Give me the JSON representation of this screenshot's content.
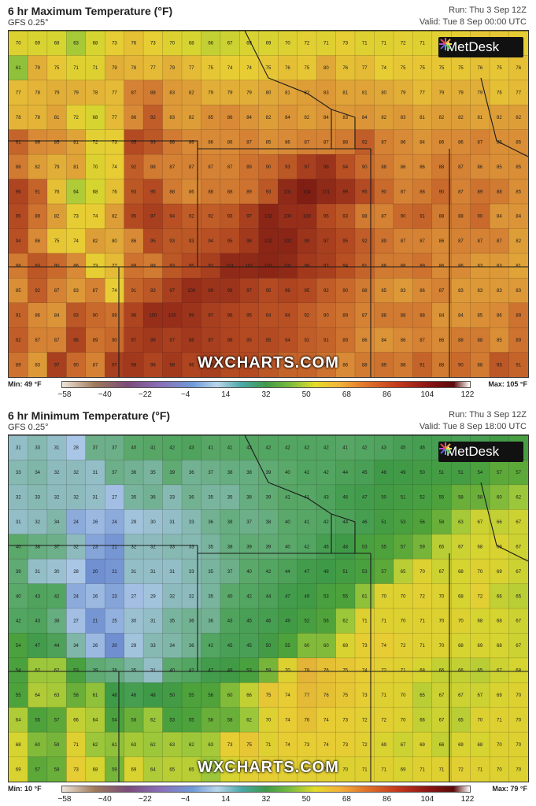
{
  "panels": [
    {
      "title": "6 hr Maximum Temperature (°F)",
      "model": "GFS 0.25°",
      "run": "Run: Thu 3 Sep 12Z",
      "valid": "Valid: Tue 8 Sep 00:00 UTC",
      "logo": "MetDesk",
      "watermark": "WXCHARTS.COM",
      "legend_min": "Min: 49 °F",
      "legend_max": "Max: 105 °F",
      "legend_ticks": [
        "−58",
        "−40",
        "−22",
        "−4",
        "14",
        "32",
        "50",
        "68",
        "86",
        "104",
        "122"
      ],
      "grid": [
        [
          70,
          69,
          68,
          63,
          68,
          73,
          76,
          73,
          70,
          68,
          66,
          67,
          69,
          69,
          70,
          72,
          71,
          73,
          71,
          71,
          72,
          71,
          72,
          73,
          75,
          75,
          73
        ],
        [
          61,
          79,
          75,
          71,
          71,
          79,
          78,
          77,
          79,
          77,
          75,
          74,
          74,
          75,
          76,
          75,
          80,
          76,
          77,
          74,
          75,
          75,
          75,
          75,
          76,
          75,
          76
        ],
        [
          77,
          78,
          79,
          79,
          78,
          77,
          87,
          88,
          83,
          82,
          79,
          79,
          79,
          80,
          81,
          82,
          83,
          81,
          81,
          80,
          79,
          77,
          79,
          79,
          79,
          76,
          77
        ],
        [
          78,
          78,
          81,
          72,
          68,
          77,
          86,
          92,
          83,
          82,
          85,
          86,
          84,
          82,
          84,
          82,
          84,
          83,
          84,
          82,
          83,
          81,
          82,
          82,
          81,
          82,
          82
        ],
        [
          91,
          86,
          85,
          81,
          72,
          73,
          95,
          93,
          88,
          86,
          86,
          86,
          87,
          85,
          86,
          87,
          87,
          88,
          92,
          87,
          86,
          84,
          86,
          86,
          87,
          85,
          85
        ],
        [
          88,
          82,
          79,
          81,
          70,
          74,
          92,
          88,
          87,
          87,
          87,
          87,
          89,
          90,
          93,
          97,
          99,
          94,
          90,
          88,
          86,
          86,
          88,
          87,
          86,
          85,
          85
        ],
        [
          96,
          91,
          76,
          64,
          68,
          76,
          93,
          95,
          88,
          86,
          88,
          88,
          89,
          93,
          101,
          104,
          101,
          99,
          95,
          90,
          87,
          88,
          90,
          87,
          89,
          88,
          85
        ],
        [
          95,
          89,
          82,
          73,
          74,
          82,
          95,
          97,
          94,
          92,
          92,
          93,
          97,
          102,
          100,
          100,
          95,
          93,
          88,
          87,
          90,
          91,
          88,
          88,
          90,
          84,
          84
        ],
        [
          94,
          86,
          75,
          74,
          82,
          80,
          86,
          95,
          93,
          93,
          94,
          95,
          98,
          102,
          102,
          99,
          97,
          95,
          92,
          89,
          87,
          87,
          86,
          87,
          87,
          87,
          82
        ],
        [
          88,
          93,
          90,
          86,
          73,
          77,
          89,
          88,
          93,
          95,
          97,
          101,
          101,
          102,
          101,
          98,
          97,
          94,
          91,
          88,
          88,
          89,
          86,
          86,
          83,
          83,
          81
        ],
        [
          85,
          92,
          87,
          83,
          87,
          74,
          91,
          93,
          97,
          100,
          99,
          99,
          97,
          95,
          96,
          95,
          92,
          90,
          88,
          85,
          83,
          86,
          87,
          83,
          83,
          83,
          83
        ],
        [
          91,
          86,
          84,
          93,
          90,
          89,
          96,
          100,
          100,
          99,
          97,
          96,
          95,
          94,
          94,
          92,
          90,
          89,
          87,
          88,
          88,
          88,
          84,
          84,
          85,
          86,
          89
        ],
        [
          92,
          87,
          87,
          96,
          89,
          90,
          97,
          98,
          97,
          98,
          97,
          96,
          95,
          95,
          94,
          92,
          91,
          89,
          86,
          84,
          86,
          87,
          86,
          88,
          88,
          85,
          89
        ],
        [
          89,
          83,
          97,
          90,
          87,
          97,
          98,
          96,
          98,
          96,
          97,
          95,
          95,
          93,
          91,
          91,
          89,
          86,
          88,
          89,
          88,
          91,
          88,
          90,
          88,
          93,
          91
        ]
      ]
    },
    {
      "title": "6 hr Minimum Temperature (°F)",
      "model": "GFS 0.25°",
      "run": "Run: Thu 3 Sep 12Z",
      "valid": "Valid: Tue 8 Sep 18:00 UTC",
      "logo": "MetDesk",
      "watermark": "WXCHARTS.COM",
      "legend_min": "Min: 10 °F",
      "legend_max": "Max: 79 °F",
      "legend_ticks": [
        "−58",
        "−40",
        "−22",
        "−4",
        "14",
        "32",
        "50",
        "68",
        "86",
        "104",
        "122"
      ],
      "grid": [
        [
          31,
          33,
          31,
          28,
          37,
          37,
          40,
          41,
          42,
          43,
          41,
          41,
          42,
          42,
          42,
          42,
          42,
          41,
          42,
          43,
          45,
          46,
          46,
          45,
          46,
          49,
          52
        ],
        [
          33,
          34,
          32,
          32,
          31,
          37,
          36,
          35,
          39,
          36,
          37,
          38,
          38,
          39,
          40,
          42,
          42,
          44,
          45,
          48,
          49,
          50,
          51,
          51,
          54,
          57,
          57
        ],
        [
          32,
          33,
          32,
          32,
          31,
          27,
          35,
          36,
          33,
          36,
          35,
          35,
          38,
          39,
          41,
          41,
          43,
          46,
          47,
          50,
          51,
          52,
          55,
          58,
          58,
          60,
          62
        ],
        [
          31,
          32,
          34,
          24,
          26,
          24,
          29,
          30,
          31,
          33,
          36,
          38,
          37,
          38,
          40,
          41,
          42,
          44,
          46,
          51,
          53,
          56,
          58,
          63,
          67,
          66,
          67
        ],
        [
          40,
          38,
          37,
          32,
          23,
          21,
          32,
          32,
          33,
          33,
          35,
          38,
          39,
          39,
          40,
          42,
          46,
          48,
          53,
          55,
          57,
          59,
          65,
          67,
          68,
          69,
          67
        ],
        [
          39,
          31,
          30,
          28,
          20,
          21,
          31,
          31,
          31,
          33,
          35,
          37,
          40,
          42,
          44,
          47,
          48,
          51,
          53,
          57,
          65,
          70,
          67,
          68,
          70,
          69,
          67
        ],
        [
          40,
          43,
          42,
          24,
          26,
          23,
          27,
          29,
          32,
          32,
          35,
          40,
          42,
          44,
          47,
          49,
          53,
          55,
          61,
          70,
          70,
          72,
          70,
          68,
          72,
          66,
          65
        ],
        [
          42,
          43,
          38,
          27,
          21,
          25,
          30,
          31,
          35,
          36,
          36,
          43,
          45,
          46,
          49,
          52,
          56,
          62,
          71,
          71,
          70,
          71,
          70,
          70,
          68,
          68,
          67
        ],
        [
          54,
          47,
          44,
          34,
          26,
          20,
          29,
          33,
          34,
          36,
          42,
          45,
          45,
          50,
          55,
          60,
          60,
          69,
          73,
          74,
          72,
          71,
          70,
          68,
          69,
          68,
          67
        ],
        [
          54,
          62,
          62,
          53,
          39,
          38,
          35,
          31,
          40,
          42,
          47,
          49,
          53,
          59,
          70,
          78,
          76,
          75,
          74,
          72,
          71,
          68,
          66,
          66,
          65,
          67,
          68
        ],
        [
          55,
          64,
          63,
          58,
          61,
          48,
          46,
          48,
          50,
          55,
          56,
          60,
          66,
          75,
          74,
          77,
          76,
          75,
          73,
          71,
          70,
          65,
          67,
          67,
          67,
          69,
          70
        ],
        [
          64,
          55,
          57,
          66,
          64,
          54,
          58,
          62,
          53,
          55,
          58,
          58,
          62,
          70,
          74,
          76,
          74,
          73,
          72,
          72,
          70,
          66,
          67,
          65,
          70,
          71,
          70
        ],
        [
          68,
          60,
          59,
          71,
          62,
          61,
          63,
          62,
          63,
          62,
          63,
          73,
          75,
          71,
          74,
          73,
          74,
          73,
          72,
          69,
          67,
          69,
          66,
          69,
          68,
          70,
          70
        ],
        [
          69,
          57,
          58,
          73,
          68,
          59,
          69,
          64,
          65,
          65,
          62,
          68,
          72,
          73,
          72,
          72,
          72,
          70,
          71,
          71,
          69,
          71,
          71,
          72,
          71,
          70,
          70
        ]
      ]
    }
  ]
}
